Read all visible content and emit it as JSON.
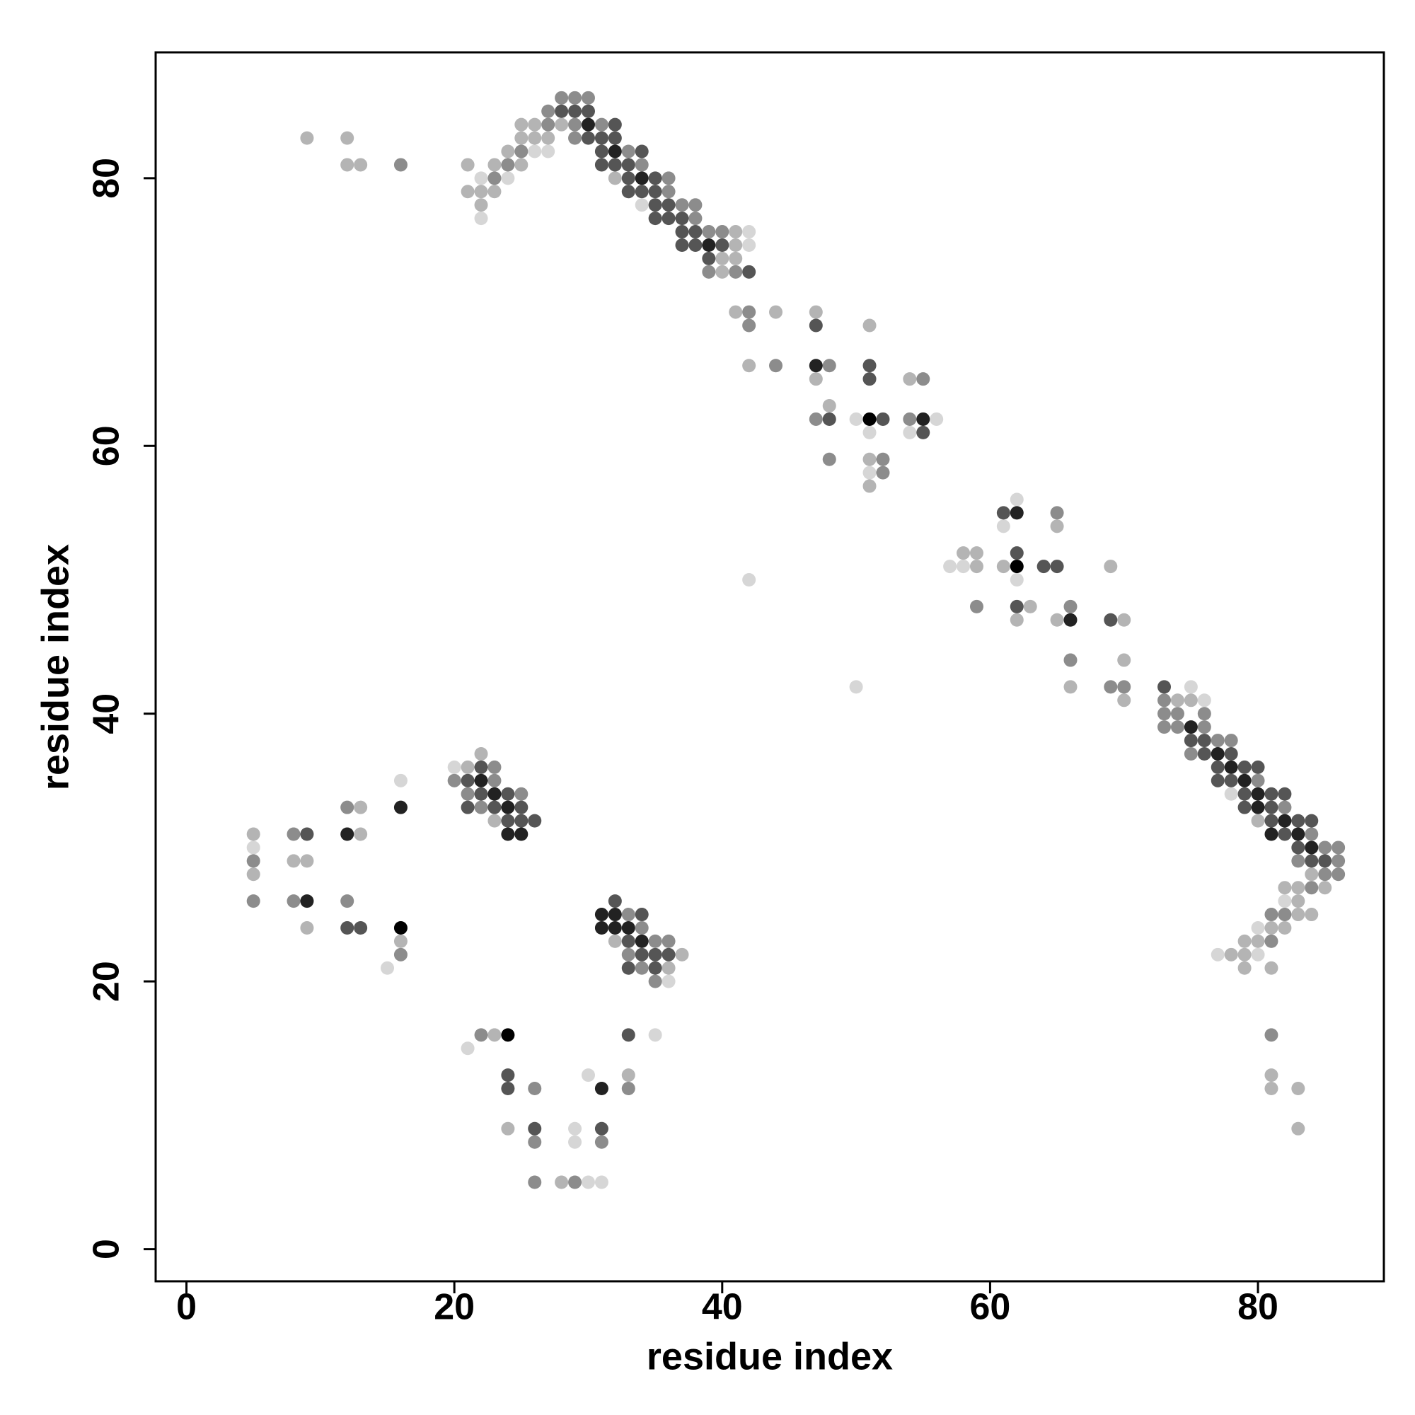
{
  "chart_data": {
    "type": "scatter",
    "x_label": "residue index",
    "y_label": "residue index",
    "xlim": [
      -2.3,
      89.4
    ],
    "ylim": [
      -2.4,
      89.4
    ],
    "xticks": [
      0,
      20,
      40,
      60,
      80
    ],
    "yticks": [
      0,
      20,
      40,
      60,
      80
    ],
    "grid": false,
    "series": [
      {
        "color": "#d6d6d6",
        "x": [
          26,
          27,
          22,
          24,
          34,
          22,
          42,
          42,
          50,
          56,
          51,
          54,
          51,
          62,
          61,
          57,
          58,
          42,
          62,
          50,
          75,
          76,
          78,
          82,
          80,
          77,
          80,
          20,
          16,
          5,
          15,
          36,
          35,
          21,
          30,
          29,
          29,
          30,
          31
        ],
        "values": [
          82,
          82,
          80,
          80,
          78,
          77,
          76,
          75,
          62,
          62,
          61,
          61,
          58,
          56,
          54,
          51,
          51,
          50,
          50,
          42,
          42,
          41,
          34,
          26,
          24,
          22,
          22,
          36,
          35,
          30,
          21,
          20,
          16,
          15,
          13,
          9,
          8,
          5,
          5
        ]
      },
      {
        "color": "#b4b4b4",
        "x": [
          9,
          12,
          25,
          26,
          28,
          25,
          26,
          27,
          24,
          12,
          13,
          21,
          23,
          25,
          32,
          21,
          22,
          23,
          22,
          41,
          41,
          40,
          41,
          40,
          41,
          44,
          47,
          51,
          42,
          47,
          54,
          48,
          51,
          51,
          65,
          58,
          59,
          59,
          61,
          69,
          63,
          62,
          65,
          70,
          70,
          66,
          70,
          74,
          75,
          80,
          84,
          82,
          83,
          85,
          83,
          83,
          84,
          81,
          82,
          79,
          80,
          78,
          79,
          79,
          81,
          81,
          81,
          83,
          83,
          22,
          21,
          13,
          23,
          5,
          13,
          8,
          9,
          5,
          9,
          16,
          32,
          37,
          36,
          23,
          33,
          24,
          28
        ],
        "values": [
          83,
          83,
          84,
          84,
          84,
          83,
          83,
          83,
          82,
          81,
          81,
          81,
          81,
          81,
          80,
          79,
          79,
          79,
          78,
          76,
          75,
          74,
          74,
          73,
          70,
          70,
          70,
          69,
          66,
          65,
          65,
          63,
          59,
          57,
          54,
          52,
          52,
          51,
          51,
          51,
          48,
          47,
          47,
          47,
          44,
          42,
          41,
          41,
          41,
          32,
          28,
          27,
          27,
          27,
          26,
          25,
          25,
          24,
          24,
          23,
          23,
          22,
          22,
          21,
          21,
          13,
          12,
          12,
          9,
          37,
          36,
          33,
          32,
          31,
          31,
          29,
          29,
          28,
          24,
          23,
          23,
          22,
          21,
          16,
          13,
          9,
          5
        ]
      },
      {
        "color": "#8c8c8c",
        "x": [
          28,
          29,
          30,
          27,
          27,
          29,
          31,
          29,
          25,
          33,
          16,
          24,
          34,
          23,
          36,
          36,
          37,
          38,
          38,
          39,
          40,
          39,
          41,
          42,
          42,
          44,
          48,
          55,
          47,
          54,
          48,
          52,
          52,
          65,
          59,
          66,
          66,
          69,
          70,
          73,
          73,
          74,
          76,
          73,
          74,
          76,
          77,
          78,
          75,
          80,
          82,
          84,
          85,
          86,
          83,
          86,
          85,
          86,
          84,
          81,
          82,
          81,
          81,
          23,
          20,
          23,
          21,
          25,
          12,
          22,
          8,
          5,
          5,
          8,
          12,
          33,
          34,
          35,
          36,
          16,
          33,
          34,
          35,
          22,
          26,
          33,
          26,
          31,
          26,
          29
        ],
        "values": [
          86,
          86,
          86,
          85,
          84,
          84,
          84,
          83,
          82,
          82,
          81,
          81,
          81,
          80,
          80,
          79,
          78,
          78,
          77,
          76,
          76,
          73,
          73,
          70,
          69,
          66,
          66,
          65,
          62,
          62,
          59,
          59,
          58,
          55,
          48,
          48,
          44,
          42,
          42,
          41,
          40,
          40,
          40,
          39,
          39,
          39,
          38,
          38,
          37,
          35,
          33,
          31,
          30,
          30,
          29,
          29,
          28,
          28,
          27,
          25,
          25,
          23,
          16,
          36,
          35,
          35,
          34,
          34,
          33,
          33,
          31,
          29,
          26,
          26,
          26,
          25,
          24,
          23,
          23,
          22,
          22,
          21,
          20,
          16,
          12,
          12,
          8,
          8,
          5,
          5
        ]
      },
      {
        "color": "#555555",
        "x": [
          28,
          29,
          30,
          32,
          30,
          31,
          32,
          31,
          34,
          31,
          32,
          33,
          33,
          35,
          33,
          34,
          35,
          35,
          36,
          35,
          36,
          37,
          37,
          38,
          37,
          38,
          40,
          39,
          42,
          47,
          51,
          51,
          48,
          52,
          55,
          61,
          62,
          64,
          65,
          62,
          69,
          73,
          75,
          76,
          76,
          78,
          77,
          79,
          80,
          77,
          78,
          79,
          81,
          82,
          79,
          81,
          81,
          83,
          84,
          82,
          83,
          84,
          85,
          22,
          21,
          22,
          24,
          21,
          23,
          25,
          24,
          25,
          26,
          9,
          32,
          34,
          12,
          13,
          33,
          34,
          35,
          36,
          33,
          35,
          33,
          24,
          24,
          26,
          31
        ],
        "values": [
          85,
          85,
          85,
          84,
          83,
          83,
          83,
          82,
          82,
          81,
          81,
          81,
          80,
          80,
          79,
          79,
          79,
          78,
          78,
          77,
          77,
          77,
          76,
          76,
          75,
          75,
          75,
          74,
          73,
          69,
          66,
          65,
          62,
          62,
          61,
          55,
          52,
          51,
          51,
          48,
          47,
          42,
          38,
          38,
          37,
          37,
          36,
          36,
          36,
          35,
          35,
          34,
          34,
          34,
          33,
          33,
          32,
          32,
          32,
          31,
          30,
          29,
          29,
          36,
          35,
          34,
          34,
          33,
          33,
          33,
          32,
          32,
          32,
          31,
          26,
          25,
          24,
          24,
          23,
          22,
          22,
          22,
          21,
          21,
          16,
          13,
          12,
          9,
          9
        ]
      },
      {
        "color": "#222222",
        "x": [
          30,
          32,
          34,
          39,
          47,
          55,
          62,
          66,
          75,
          77,
          78,
          79,
          80,
          80,
          82,
          81,
          83,
          84,
          22,
          23,
          16,
          24,
          12,
          24,
          25,
          9,
          31,
          32,
          31,
          32,
          33,
          34,
          31
        ],
        "values": [
          84,
          82,
          80,
          75,
          66,
          62,
          55,
          47,
          39,
          37,
          36,
          35,
          34,
          33,
          32,
          31,
          31,
          30,
          35,
          34,
          33,
          33,
          31,
          31,
          31,
          26,
          25,
          25,
          24,
          24,
          24,
          23,
          12
        ]
      },
      {
        "color": "#000000",
        "x": [
          51,
          62,
          16,
          24
        ],
        "values": [
          62,
          51,
          24,
          16
        ]
      }
    ]
  }
}
